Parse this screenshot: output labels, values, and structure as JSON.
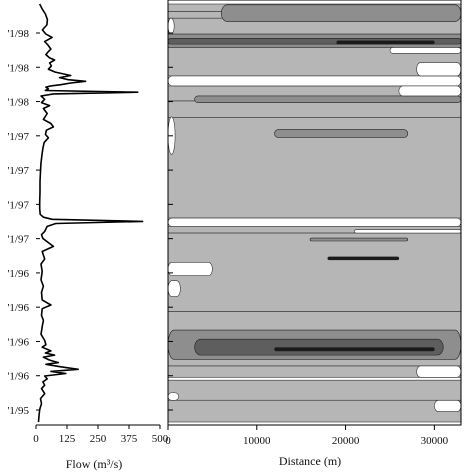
{
  "chart_data": [
    {
      "type": "line",
      "orientation": "vertical-time-axis",
      "xlabel": "Flow (m³/s)",
      "xticks": [
        0,
        125,
        250,
        375,
        500
      ],
      "xlim": [
        0,
        500
      ],
      "date_tick_labels": [
        "'1/98",
        "'1/98",
        "'1/98",
        "'1/97",
        "'1/97",
        "'1/97",
        "'1/97",
        "'1/96",
        "'1/96",
        "'1/96",
        "'1/96",
        "'1/95"
      ],
      "series": [
        {
          "points": [
            [
              0.0,
              15
            ],
            [
              0.012,
              25
            ],
            [
              0.024,
              38
            ],
            [
              0.037,
              46
            ],
            [
              0.05,
              44
            ],
            [
              0.062,
              26
            ],
            [
              0.072,
              40
            ],
            [
              0.08,
              65
            ],
            [
              0.09,
              35
            ],
            [
              0.098,
              48
            ],
            [
              0.108,
              60
            ],
            [
              0.115,
              48
            ],
            [
              0.121,
              40
            ],
            [
              0.129,
              55
            ],
            [
              0.134,
              75
            ],
            [
              0.141,
              55
            ],
            [
              0.148,
              62
            ],
            [
              0.156,
              50
            ],
            [
              0.163,
              78
            ],
            [
              0.171,
              140
            ],
            [
              0.176,
              95
            ],
            [
              0.181,
              130
            ],
            [
              0.185,
              200
            ],
            [
              0.189,
              140
            ],
            [
              0.193,
              100
            ],
            [
              0.196,
              60
            ],
            [
              0.199,
              40
            ],
            [
              0.203,
              50
            ],
            [
              0.207,
              38
            ],
            [
              0.211,
              410
            ],
            [
              0.215,
              70
            ],
            [
              0.22,
              20
            ],
            [
              0.228,
              35
            ],
            [
              0.236,
              22
            ],
            [
              0.243,
              55
            ],
            [
              0.25,
              30
            ],
            [
              0.262,
              45
            ],
            [
              0.276,
              30
            ],
            [
              0.286,
              60
            ],
            [
              0.294,
              70
            ],
            [
              0.302,
              42
            ],
            [
              0.312,
              38
            ],
            [
              0.32,
              50
            ],
            [
              0.331,
              33
            ],
            [
              0.345,
              28
            ],
            [
              0.36,
              24
            ],
            [
              0.38,
              20
            ],
            [
              0.4,
              18
            ],
            [
              0.425,
              16
            ],
            [
              0.45,
              16
            ],
            [
              0.475,
              15
            ],
            [
              0.49,
              15
            ],
            [
              0.503,
              17
            ],
            [
              0.51,
              30
            ],
            [
              0.515,
              65
            ],
            [
              0.52,
              430
            ],
            [
              0.525,
              80
            ],
            [
              0.532,
              45
            ],
            [
              0.544,
              35
            ],
            [
              0.552,
              22
            ],
            [
              0.561,
              28
            ],
            [
              0.58,
              70
            ],
            [
              0.592,
              25
            ],
            [
              0.61,
              35
            ],
            [
              0.622,
              20
            ],
            [
              0.64,
              25
            ],
            [
              0.66,
              20
            ],
            [
              0.675,
              30
            ],
            [
              0.69,
              22
            ],
            [
              0.708,
              25
            ],
            [
              0.72,
              60
            ],
            [
              0.729,
              25
            ],
            [
              0.745,
              22
            ],
            [
              0.757,
              30
            ],
            [
              0.772,
              25
            ],
            [
              0.79,
              20
            ],
            [
              0.805,
              35
            ],
            [
              0.815,
              40
            ],
            [
              0.821,
              25
            ],
            [
              0.83,
              60
            ],
            [
              0.835,
              38
            ],
            [
              0.84,
              75
            ],
            [
              0.845,
              30
            ],
            [
              0.852,
              55
            ],
            [
              0.858,
              90
            ],
            [
              0.862,
              40
            ],
            [
              0.868,
              100
            ],
            [
              0.874,
              170
            ],
            [
              0.879,
              60
            ],
            [
              0.884,
              120
            ],
            [
              0.89,
              35
            ],
            [
              0.897,
              45
            ],
            [
              0.904,
              28
            ],
            [
              0.912,
              35
            ],
            [
              0.92,
              22
            ],
            [
              0.932,
              35
            ],
            [
              0.944,
              18
            ],
            [
              0.956,
              22
            ],
            [
              0.97,
              15
            ],
            [
              0.985,
              12
            ],
            [
              1.0,
              10
            ]
          ]
        }
      ]
    },
    {
      "type": "area",
      "subtype": "contour",
      "xlabel": "Distance (m)",
      "xticks": [
        0,
        10000,
        20000,
        30000
      ],
      "xlim": [
        0,
        33000
      ],
      "colors": {
        "fill": "#b6b6b6",
        "mid": "#8e8e8e",
        "dark": "#5e5e5e",
        "line": "#1a1a1a",
        "gap": "#ffffff"
      },
      "bands": [
        {
          "v0": 0.0,
          "v1": 0.018,
          "tone": "fill",
          "extent": 33000
        },
        {
          "v0": 0.018,
          "v1": 0.034,
          "tone": "fill",
          "extent": 33000
        },
        {
          "v0": 0.034,
          "v1": 0.072,
          "tone": "fill",
          "extent": 33000
        },
        {
          "v0": 0.072,
          "v1": 0.104,
          "tone": "mid",
          "extent": 33000
        },
        {
          "v0": 0.104,
          "v1": 0.172,
          "tone": "fill",
          "extent": 33000
        },
        {
          "v0": 0.196,
          "v1": 0.232,
          "tone": "fill",
          "extent": 33000
        },
        {
          "v0": 0.232,
          "v1": 0.272,
          "tone": "fill",
          "extent": 33000
        },
        {
          "v0": 0.272,
          "v1": 0.512,
          "tone": "fill",
          "extent": 33000
        },
        {
          "v0": 0.532,
          "v1": 0.548,
          "tone": "fill",
          "extent": 33000
        },
        {
          "v0": 0.548,
          "v1": 0.736,
          "tone": "fill",
          "extent": 33000
        },
        {
          "v0": 0.736,
          "v1": 0.866,
          "tone": "fill",
          "extent": 33000
        },
        {
          "v0": 0.866,
          "v1": 0.893,
          "tone": "fill",
          "extent": 33000
        },
        {
          "v0": 0.9,
          "v1": 0.948,
          "tone": "fill",
          "extent": 33000
        },
        {
          "v0": 0.948,
          "v1": 1.0,
          "tone": "fill",
          "extent": 33000
        }
      ],
      "patches": [
        {
          "v0": 0.002,
          "v1": 0.042,
          "x0": 6000,
          "x1": 33000,
          "tone": "mid"
        },
        {
          "v0": 0.082,
          "v1": 0.096,
          "x0": 0,
          "x1": 33000,
          "tone": "dark"
        },
        {
          "v0": 0.088,
          "v1": 0.096,
          "x0": 19000,
          "x1": 30000,
          "tone": "line"
        },
        {
          "v0": 0.22,
          "v1": 0.236,
          "x0": 3000,
          "x1": 33000,
          "tone": "mid"
        },
        {
          "v0": 0.3,
          "v1": 0.32,
          "x0": 12000,
          "x1": 27000,
          "tone": "mid"
        },
        {
          "v0": 0.56,
          "v1": 0.567,
          "x0": 16000,
          "x1": 27000,
          "tone": "mid"
        },
        {
          "v0": 0.605,
          "v1": 0.612,
          "x0": 18000,
          "x1": 26000,
          "tone": "line"
        },
        {
          "v0": 0.78,
          "v1": 0.85,
          "x0": 0,
          "x1": 33000,
          "tone": "mid"
        },
        {
          "v0": 0.802,
          "v1": 0.84,
          "x0": 3000,
          "x1": 31000,
          "tone": "dark"
        },
        {
          "v0": 0.822,
          "v1": 0.83,
          "x0": 12000,
          "x1": 30000,
          "tone": "line"
        }
      ],
      "gaps": [
        {
          "v0": 0.172,
          "v1": 0.196,
          "x0": 0,
          "x1": 33000
        },
        {
          "v0": 0.512,
          "v1": 0.532,
          "x0": 0,
          "x1": 33000
        },
        {
          "v0": 0.893,
          "v1": 0.9,
          "x0": 0,
          "x1": 33000
        },
        {
          "v0": 0.034,
          "v1": 0.072,
          "x0": 0,
          "x1": 700
        },
        {
          "v0": 0.27,
          "v1": 0.36,
          "x0": 0,
          "x1": 800
        },
        {
          "v0": 0.618,
          "v1": 0.65,
          "x0": 0,
          "x1": 5000
        },
        {
          "v0": 0.662,
          "v1": 0.7,
          "x0": 0,
          "x1": 1400
        },
        {
          "v0": 0.93,
          "v1": 0.948,
          "x0": 0,
          "x1": 1200
        },
        {
          "v0": 0.104,
          "v1": 0.118,
          "x0": 25000,
          "x1": 33000
        },
        {
          "v0": 0.14,
          "v1": 0.172,
          "x0": 28000,
          "x1": 33000
        },
        {
          "v0": 0.196,
          "v1": 0.22,
          "x0": 26000,
          "x1": 33000
        },
        {
          "v0": 0.54,
          "v1": 0.548,
          "x0": 21000,
          "x1": 33000
        },
        {
          "v0": 0.866,
          "v1": 0.893,
          "x0": 28000,
          "x1": 33000
        },
        {
          "v0": 0.948,
          "v1": 0.975,
          "x0": 30000,
          "x1": 33000
        }
      ]
    }
  ]
}
